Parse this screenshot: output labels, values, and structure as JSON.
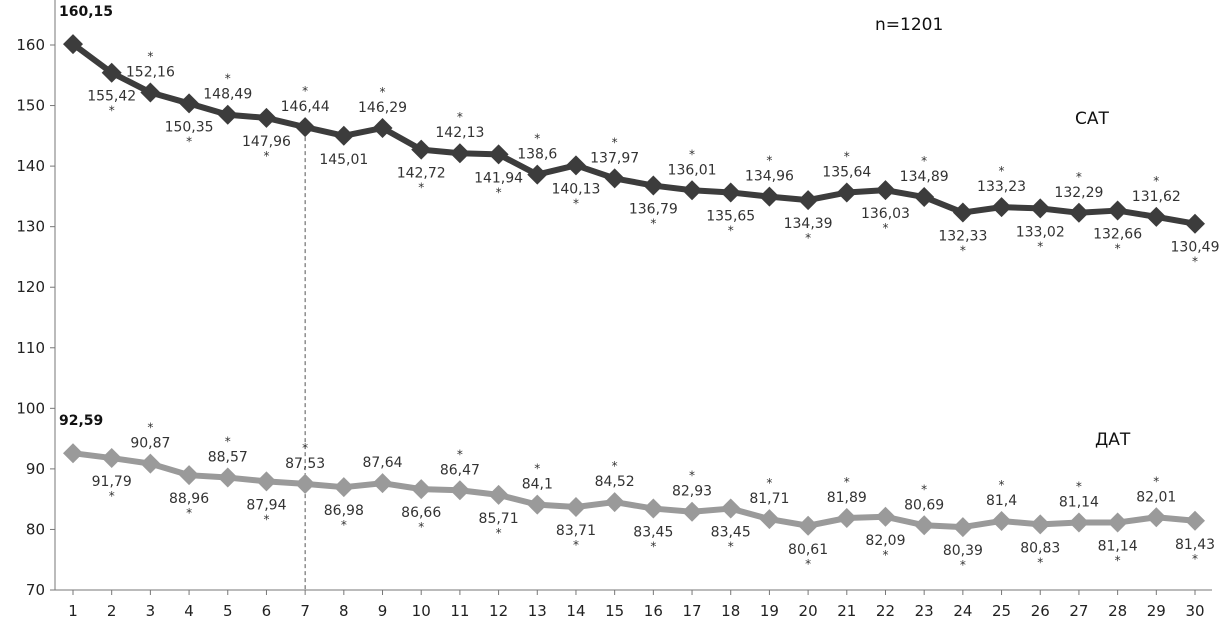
{
  "chart_data": {
    "type": "line",
    "x": [
      1,
      2,
      3,
      4,
      5,
      6,
      7,
      8,
      9,
      10,
      11,
      12,
      13,
      14,
      15,
      16,
      17,
      18,
      19,
      20,
      21,
      22,
      23,
      24,
      25,
      26,
      27,
      28,
      29,
      30
    ],
    "xlim": [
      1,
      30
    ],
    "ylim": [
      70,
      160
    ],
    "yticks": [
      70,
      80,
      90,
      100,
      110,
      120,
      130,
      140,
      150,
      160
    ],
    "sample_size": "n=1201",
    "reference_line_x": 7,
    "grid": false,
    "series": [
      {
        "name": "САТ",
        "color": "#3c3c3c",
        "values": [
          160.15,
          155.42,
          152.16,
          150.35,
          148.49,
          147.96,
          146.44,
          145.01,
          146.29,
          142.72,
          142.13,
          141.94,
          138.6,
          140.13,
          137.97,
          136.79,
          136.01,
          135.65,
          134.96,
          134.39,
          135.64,
          136.03,
          134.89,
          132.33,
          133.23,
          133.02,
          132.29,
          132.66,
          131.62,
          130.49
        ],
        "labels": [
          "160,15",
          "155,42",
          "152,16",
          "150,35",
          "148,49",
          "147,96",
          "146,44",
          "145,01",
          "146,29",
          "142,72",
          "142,13",
          "141,94",
          "138,6",
          "140,13",
          "137,97",
          "136,79",
          "136,01",
          "135,65",
          "134,96",
          "134,39",
          "135,64",
          "136,03",
          "134,89",
          "132,33",
          "133,23",
          "133,02",
          "132,29",
          "132,66",
          "131,62",
          "130,49"
        ],
        "label_pos": [
          "top",
          "below",
          "above",
          "below",
          "above",
          "below",
          "above",
          "below",
          "above",
          "below",
          "above",
          "below",
          "above",
          "below",
          "above",
          "below",
          "above",
          "below",
          "above",
          "below",
          "above",
          "below",
          "above",
          "below",
          "above",
          "below",
          "above",
          "below",
          "above",
          "below"
        ],
        "significant": [
          false,
          true,
          true,
          true,
          true,
          true,
          true,
          false,
          true,
          true,
          true,
          true,
          true,
          true,
          true,
          true,
          true,
          true,
          true,
          true,
          true,
          true,
          true,
          true,
          true,
          true,
          true,
          true,
          true,
          true
        ]
      },
      {
        "name": "ДАТ",
        "color": "#9a9a9a",
        "values": [
          92.59,
          91.79,
          90.87,
          88.96,
          88.57,
          87.94,
          87.53,
          86.98,
          87.64,
          86.66,
          86.47,
          85.71,
          84.1,
          83.71,
          84.52,
          83.45,
          82.93,
          83.45,
          81.71,
          80.61,
          81.89,
          82.09,
          80.69,
          80.39,
          81.4,
          80.83,
          81.14,
          81.14,
          82.01,
          81.43
        ],
        "labels": [
          "92,59",
          "91,79",
          "90,87",
          "88,96",
          "88,57",
          "87,94",
          "87,53",
          "86,98",
          "87,64",
          "86,66",
          "86,47",
          "85,71",
          "84,1",
          "83,71",
          "84,52",
          "83,45",
          "82,93",
          "83,45",
          "81,71",
          "80,61",
          "81,89",
          "82,09",
          "80,69",
          "80,39",
          "81,4",
          "80,83",
          "81,14",
          "81,14",
          "82,01",
          "81,43"
        ],
        "label_pos": [
          "top",
          "below",
          "above",
          "below",
          "above",
          "below",
          "above",
          "below",
          "above",
          "below",
          "above",
          "below",
          "above",
          "below",
          "above",
          "below",
          "above",
          "below",
          "above",
          "below",
          "above",
          "below",
          "above",
          "below",
          "above",
          "below",
          "above",
          "below",
          "above",
          "below"
        ],
        "significant": [
          false,
          true,
          true,
          true,
          true,
          true,
          true,
          true,
          false,
          true,
          true,
          true,
          true,
          true,
          true,
          true,
          true,
          true,
          true,
          true,
          true,
          true,
          true,
          true,
          true,
          true,
          true,
          true,
          true,
          true
        ]
      }
    ]
  }
}
